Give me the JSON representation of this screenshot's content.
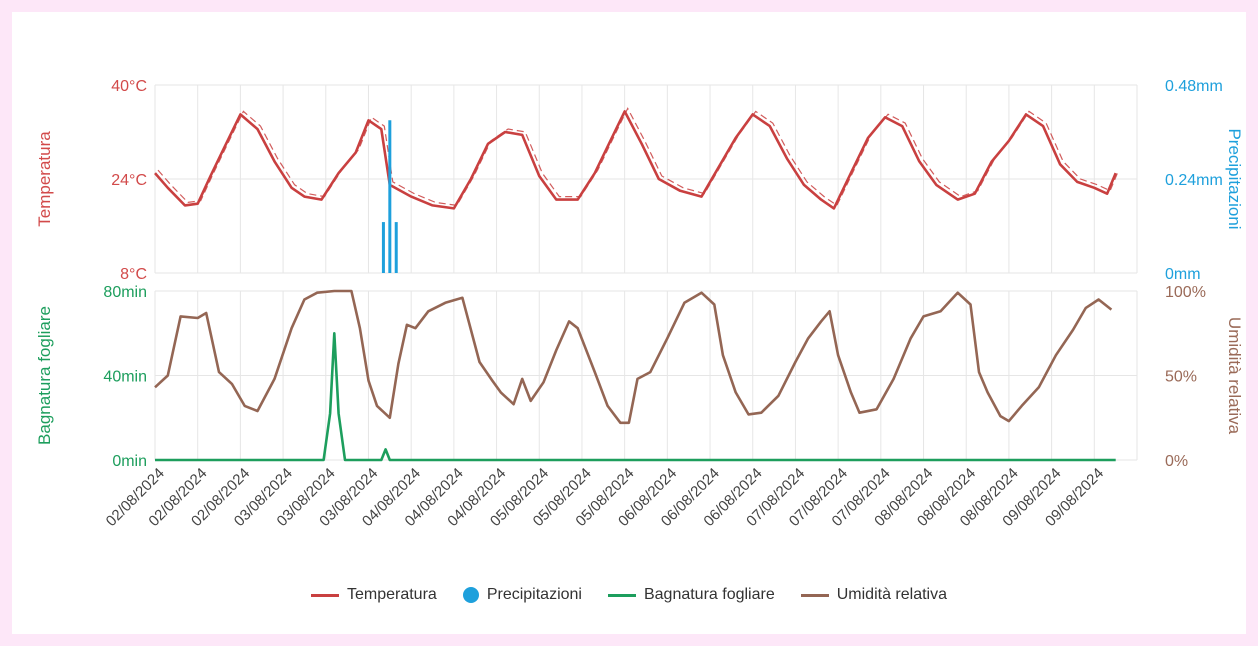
{
  "chart_data": {
    "type": "line",
    "x": [
      "02/08/2024",
      "02/08/2024",
      "02/08/2024",
      "03/08/2024",
      "03/08/2024",
      "03/08/2024",
      "04/08/2024",
      "04/08/2024",
      "04/08/2024",
      "05/08/2024",
      "05/08/2024",
      "05/08/2024",
      "06/08/2024",
      "06/08/2024",
      "06/08/2024",
      "07/08/2024",
      "07/08/2024",
      "07/08/2024",
      "08/08/2024",
      "08/08/2024",
      "08/08/2024",
      "09/08/2024",
      "09/08/2024"
    ],
    "panels": [
      {
        "position": "top",
        "y_left": {
          "label": "Temperatura",
          "ticks": [
            "8°C",
            "24°C",
            "40°C"
          ],
          "range": [
            8,
            40
          ],
          "color": "#d24a4a"
        },
        "y_right": {
          "label": "Precipitazioni",
          "ticks": [
            "0mm",
            "0.24mm",
            "0.48mm"
          ],
          "range": [
            0,
            0.48
          ],
          "color": "#1ea0dc"
        },
        "series": [
          {
            "name": "Temperatura",
            "type": "line",
            "color": "#c94040",
            "points": [
              [
                0,
                25
              ],
              [
                0.3,
                22.5
              ],
              [
                0.7,
                19.5
              ],
              [
                1.0,
                19.8
              ],
              [
                1.3,
                24.5
              ],
              [
                1.6,
                29
              ],
              [
                2.0,
                35
              ],
              [
                2.4,
                32.5
              ],
              [
                2.8,
                27
              ],
              [
                3.2,
                22.5
              ],
              [
                3.5,
                21
              ],
              [
                3.9,
                20.5
              ],
              [
                4.3,
                25
              ],
              [
                4.7,
                28.5
              ],
              [
                5.0,
                34
              ],
              [
                5.3,
                32.5
              ],
              [
                5.5,
                23
              ],
              [
                6.0,
                21
              ],
              [
                6.5,
                19.5
              ],
              [
                7.0,
                19
              ],
              [
                7.4,
                24
              ],
              [
                7.8,
                30
              ],
              [
                8.2,
                32
              ],
              [
                8.6,
                31.5
              ],
              [
                9.0,
                24.5
              ],
              [
                9.4,
                20.5
              ],
              [
                9.9,
                20.5
              ],
              [
                10.3,
                25
              ],
              [
                10.7,
                31
              ],
              [
                11.0,
                35.5
              ],
              [
                11.4,
                30
              ],
              [
                11.8,
                24
              ],
              [
                12.3,
                22
              ],
              [
                12.8,
                21
              ],
              [
                13.2,
                26
              ],
              [
                13.6,
                31
              ],
              [
                14.0,
                35
              ],
              [
                14.4,
                33
              ],
              [
                14.8,
                27.5
              ],
              [
                15.2,
                23
              ],
              [
                15.6,
                20.5
              ],
              [
                15.9,
                19
              ],
              [
                16.3,
                25
              ],
              [
                16.7,
                31
              ],
              [
                17.1,
                34.5
              ],
              [
                17.5,
                33
              ],
              [
                17.9,
                27
              ],
              [
                18.3,
                23
              ],
              [
                18.8,
                20.5
              ],
              [
                19.2,
                21.5
              ],
              [
                19.6,
                27
              ],
              [
                20.0,
                30.5
              ],
              [
                20.4,
                35
              ],
              [
                20.8,
                33
              ],
              [
                21.2,
                26.5
              ],
              [
                21.6,
                23.5
              ],
              [
                22.0,
                22.5
              ],
              [
                22.3,
                21.5
              ],
              [
                22.5,
                25
              ]
            ]
          },
          {
            "name": "Precipitazioni",
            "type": "bar",
            "color": "#1ea0dc",
            "points": [
              [
                5.35,
                0.13
              ],
              [
                5.5,
                0.39
              ],
              [
                5.65,
                0.13
              ]
            ]
          }
        ]
      },
      {
        "position": "bottom",
        "y_left": {
          "label": "Bagnatura fogliare",
          "ticks": [
            "0min",
            "40min",
            "80min"
          ],
          "range": [
            0,
            80
          ],
          "color": "#1d9e5d"
        },
        "y_right": {
          "label": "Umidità relativa",
          "ticks": [
            "0%",
            "50%",
            "100%"
          ],
          "range": [
            0,
            100
          ],
          "color": "#9a6a58"
        },
        "series": [
          {
            "name": "Bagnatura fogliare",
            "type": "line",
            "color": "#1d9e5d",
            "points": [
              [
                0,
                0
              ],
              [
                3.95,
                0
              ],
              [
                4.1,
                22
              ],
              [
                4.2,
                60
              ],
              [
                4.3,
                22
              ],
              [
                4.45,
                0
              ],
              [
                5.3,
                0
              ],
              [
                5.4,
                5
              ],
              [
                5.5,
                0
              ],
              [
                22.5,
                0
              ]
            ]
          },
          {
            "name": "Umidità relativa",
            "type": "line",
            "color": "#946654",
            "points": [
              [
                0,
                43
              ],
              [
                0.3,
                50
              ],
              [
                0.6,
                85
              ],
              [
                1.0,
                84
              ],
              [
                1.2,
                87
              ],
              [
                1.5,
                52
              ],
              [
                1.8,
                45
              ],
              [
                2.1,
                32
              ],
              [
                2.4,
                29
              ],
              [
                2.8,
                48
              ],
              [
                3.2,
                78
              ],
              [
                3.5,
                95
              ],
              [
                3.8,
                99
              ],
              [
                4.2,
                100
              ],
              [
                4.6,
                100
              ],
              [
                4.8,
                78
              ],
              [
                5.0,
                47
              ],
              [
                5.2,
                32
              ],
              [
                5.5,
                25
              ],
              [
                5.7,
                57
              ],
              [
                5.9,
                80
              ],
              [
                6.1,
                78
              ],
              [
                6.4,
                88
              ],
              [
                6.8,
                93
              ],
              [
                7.2,
                96
              ],
              [
                7.6,
                58
              ],
              [
                7.9,
                47
              ],
              [
                8.1,
                40
              ],
              [
                8.4,
                33
              ],
              [
                8.6,
                48
              ],
              [
                8.8,
                35
              ],
              [
                9.1,
                46
              ],
              [
                9.4,
                65
              ],
              [
                9.7,
                82
              ],
              [
                9.9,
                78
              ],
              [
                10.3,
                52
              ],
              [
                10.6,
                32
              ],
              [
                10.9,
                22
              ],
              [
                11.1,
                22
              ],
              [
                11.3,
                48
              ],
              [
                11.6,
                52
              ],
              [
                12.0,
                72
              ],
              [
                12.4,
                93
              ],
              [
                12.8,
                99
              ],
              [
                13.1,
                92
              ],
              [
                13.3,
                62
              ],
              [
                13.6,
                40
              ],
              [
                13.9,
                27
              ],
              [
                14.2,
                28
              ],
              [
                14.6,
                38
              ],
              [
                15.0,
                58
              ],
              [
                15.3,
                72
              ],
              [
                15.6,
                82
              ],
              [
                15.8,
                88
              ],
              [
                16.0,
                62
              ],
              [
                16.3,
                40
              ],
              [
                16.5,
                28
              ],
              [
                16.9,
                30
              ],
              [
                17.3,
                48
              ],
              [
                17.7,
                72
              ],
              [
                18.0,
                85
              ],
              [
                18.4,
                88
              ],
              [
                18.8,
                99
              ],
              [
                19.1,
                92
              ],
              [
                19.3,
                52
              ],
              [
                19.5,
                40
              ],
              [
                19.8,
                26
              ],
              [
                20.0,
                23
              ],
              [
                20.3,
                32
              ],
              [
                20.7,
                43
              ],
              [
                21.1,
                62
              ],
              [
                21.5,
                77
              ],
              [
                21.8,
                90
              ],
              [
                22.1,
                95
              ],
              [
                22.4,
                89
              ]
            ]
          }
        ]
      }
    ],
    "grid": true,
    "legend": {
      "placement": "bottom-center",
      "entries": [
        "Temperatura",
        "Precipitazioni",
        "Bagnatura fogliare",
        "Umidità relativa"
      ]
    }
  }
}
